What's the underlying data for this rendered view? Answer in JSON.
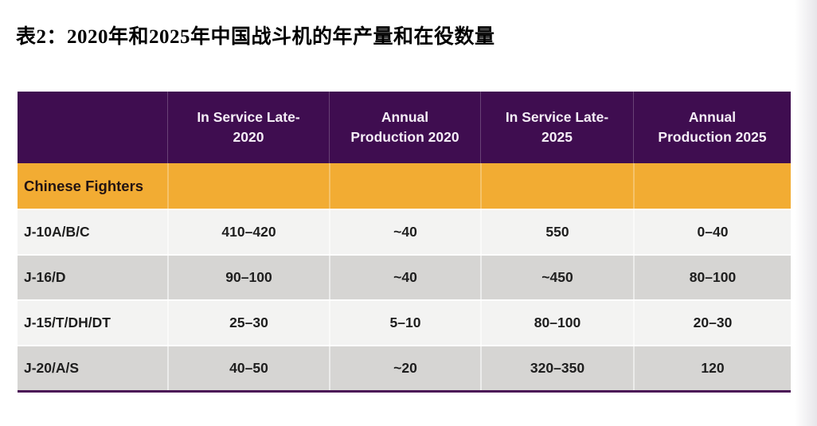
{
  "page": {
    "title": "表2：2020年和2025年中国战斗机的年产量和在役数量"
  },
  "table": {
    "columns": [
      {
        "line1": "",
        "line2": ""
      },
      {
        "line1": "In Service Late-",
        "line2": "2020"
      },
      {
        "line1": "Annual",
        "line2": "Production 2020"
      },
      {
        "line1": "In Service Late-",
        "line2": "2025"
      },
      {
        "line1": "Annual",
        "line2": "Production 2025"
      }
    ],
    "section": "Chinese Fighters",
    "rows": [
      {
        "label": "J-10A/B/C",
        "values": [
          "410–420",
          "~40",
          "550",
          "0–40"
        ]
      },
      {
        "label": "J-16/D",
        "values": [
          "90–100",
          "~40",
          "~450",
          "80–100"
        ]
      },
      {
        "label": "J-15/T/DH/DT",
        "values": [
          "25–30",
          "5–10",
          "80–100",
          "20–30"
        ]
      },
      {
        "label": "J-20/A/S",
        "values": [
          "40–50",
          "~20",
          "320–350",
          "120"
        ]
      }
    ],
    "colors": {
      "header_purple": "#3F0D50",
      "section_orange": "#F2AC33",
      "row_light": "#F3F3F2",
      "row_dark": "#D6D5D3",
      "bottom_rule_purple": "#4B1356"
    }
  }
}
